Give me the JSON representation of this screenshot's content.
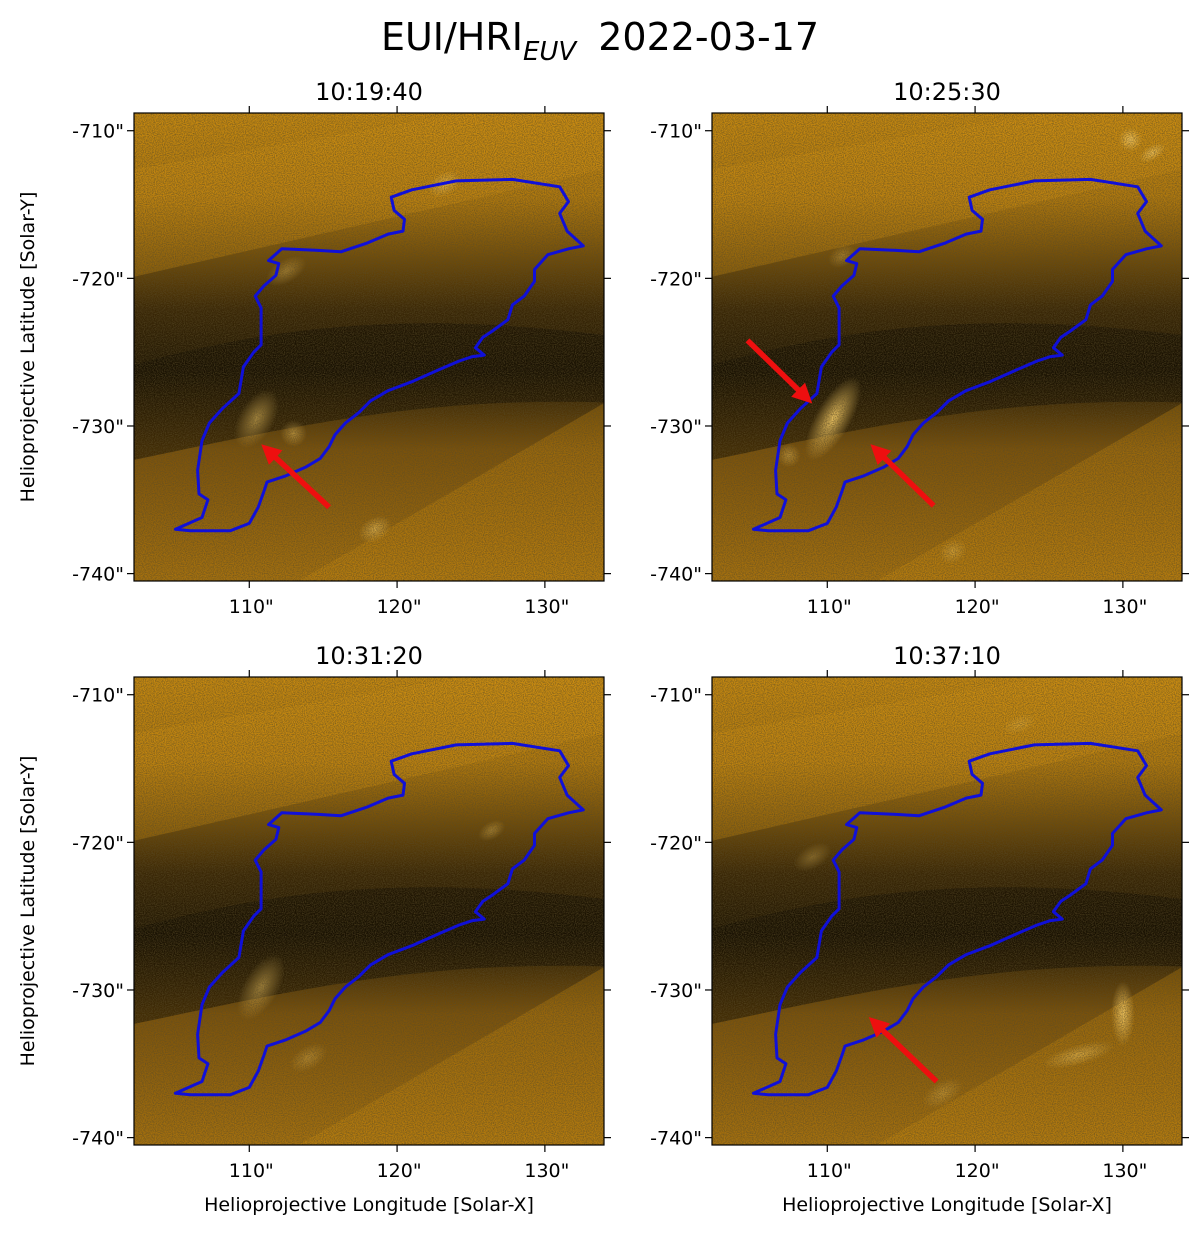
{
  "figure": {
    "title_main": "EUI/HRI",
    "title_sub": "EUV",
    "title_date": "2022-03-17",
    "xlabel": "Helioprojective Longitude [Solar-X]",
    "ylabel": "Helioprojective Latitude [Solar-Y]",
    "xticks": [
      "110\"",
      "120\"",
      "130\""
    ],
    "yticks": [
      "-710\"",
      "-720\"",
      "-730\"",
      "-740\""
    ],
    "colors": {
      "image_dark": "#1a1204",
      "image_bright": "#f2a50c",
      "contour": "#1010d8",
      "arrow": "#ee0f0f"
    }
  },
  "panels": [
    {
      "time": "10:19:40"
    },
    {
      "time": "10:25:30"
    },
    {
      "time": "10:31:20"
    },
    {
      "time": "10:37:10"
    }
  ]
}
